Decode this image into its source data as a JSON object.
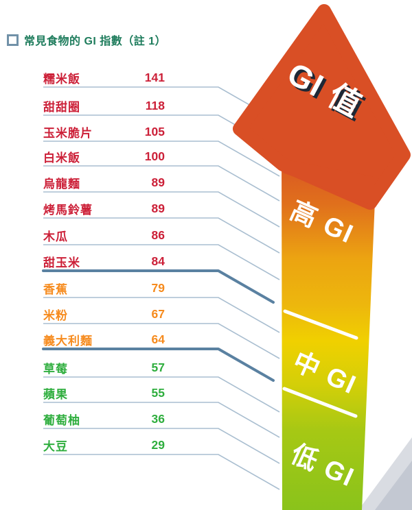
{
  "title": {
    "text": "常見食物的 GI 指數（註 1）"
  },
  "arrow": {
    "head_label": "GI 值",
    "zones": [
      {
        "label": "高 GI",
        "category": "high"
      },
      {
        "label": "中 GI",
        "category": "mid"
      },
      {
        "label": "低 GI",
        "category": "low"
      }
    ]
  },
  "foods": [
    {
      "name": "糯米飯",
      "value": "141",
      "category": "high"
    },
    {
      "name": "甜甜圈",
      "value": "118",
      "category": "high"
    },
    {
      "name": "玉米脆片",
      "value": "105",
      "category": "high"
    },
    {
      "name": "白米飯",
      "value": "100",
      "category": "high"
    },
    {
      "name": "烏龍麵",
      "value": "89",
      "category": "high"
    },
    {
      "name": "烤馬鈴薯",
      "value": "89",
      "category": "high"
    },
    {
      "name": "木瓜",
      "value": "86",
      "category": "high"
    },
    {
      "name": "甜玉米",
      "value": "84",
      "category": "high"
    },
    {
      "name": "香蕉",
      "value": "79",
      "category": "mid"
    },
    {
      "name": "米粉",
      "value": "67",
      "category": "mid"
    },
    {
      "name": "義大利麵",
      "value": "64",
      "category": "mid"
    },
    {
      "name": "草莓",
      "value": "57",
      "category": "low"
    },
    {
      "name": "蘋果",
      "value": "55",
      "category": "low"
    },
    {
      "name": "葡萄柚",
      "value": "36",
      "category": "low"
    },
    {
      "name": "大豆",
      "value": "29",
      "category": "low"
    }
  ],
  "colors": {
    "title": "#1e7c5c",
    "bullet": "#7191a8",
    "high": "#cc2038",
    "mid": "#f68b1e",
    "low": "#2fae3e",
    "thin": "#a9bed0",
    "thick": "#5a81a1",
    "arrow_head": "#d94f25",
    "shaft_gradient": [
      "#d85124",
      "#e0701c",
      "#eca411",
      "#edb70d",
      "#f0d000",
      "#d4cf08",
      "#a6c814",
      "#8ac31b"
    ],
    "gray_wedge_light": "#d9dce2",
    "gray_wedge_dark": "#c3c8d2"
  },
  "chart_data": {
    "type": "table",
    "title": "常見食物的 GI 指數（註 1）",
    "categories": [
      "糯米飯",
      "甜甜圈",
      "玉米脆片",
      "白米飯",
      "烏龍麵",
      "烤馬鈴薯",
      "木瓜",
      "甜玉米",
      "香蕉",
      "米粉",
      "義大利麵",
      "草莓",
      "蘋果",
      "葡萄柚",
      "大豆"
    ],
    "values": [
      141,
      118,
      105,
      100,
      89,
      89,
      86,
      84,
      79,
      67,
      64,
      57,
      55,
      36,
      29
    ],
    "groups": [
      "high",
      "high",
      "high",
      "high",
      "high",
      "high",
      "high",
      "high",
      "mid",
      "mid",
      "mid",
      "low",
      "low",
      "low",
      "low"
    ],
    "zone_annotations": [
      "GI 值",
      "高 GI",
      "中 GI",
      "低 GI"
    ],
    "zone_boundaries": {
      "high_mid_after_value": 84,
      "mid_low_after_value": 64
    },
    "legend_position": "right-arrow",
    "grid": false
  }
}
